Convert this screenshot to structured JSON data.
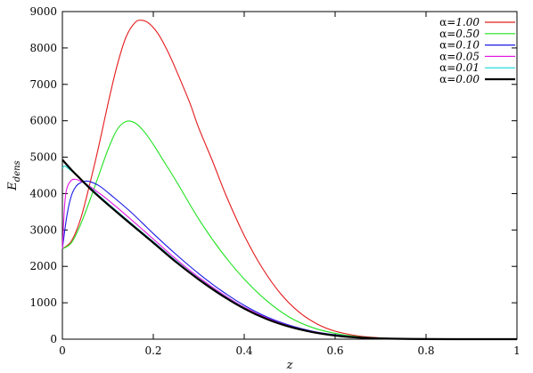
{
  "chart_data": {
    "type": "line",
    "xlabel": "z",
    "ylabel_main": "E",
    "ylabel_sub": "dens",
    "xlim": [
      0,
      1
    ],
    "ylim": [
      0,
      9000
    ],
    "x_ticks": [
      "0",
      "0.2",
      "0.4",
      "0.6",
      "0.8",
      "1"
    ],
    "y_ticks": [
      "0",
      "1000",
      "2000",
      "3000",
      "4000",
      "5000",
      "6000",
      "7000",
      "8000",
      "9000"
    ],
    "grid": false,
    "legend_position": "top-right",
    "series": [
      {
        "name": "α=1.00",
        "color": "#e41a1c",
        "points": [
          [
            0,
            2480
          ],
          [
            0.02,
            2700
          ],
          [
            0.04,
            3300
          ],
          [
            0.06,
            4250
          ],
          [
            0.08,
            5300
          ],
          [
            0.1,
            6450
          ],
          [
            0.12,
            7500
          ],
          [
            0.14,
            8300
          ],
          [
            0.16,
            8700
          ],
          [
            0.175,
            8760
          ],
          [
            0.19,
            8680
          ],
          [
            0.21,
            8400
          ],
          [
            0.23,
            7950
          ],
          [
            0.25,
            7400
          ],
          [
            0.28,
            6500
          ],
          [
            0.3,
            5800
          ],
          [
            0.33,
            4900
          ],
          [
            0.36,
            3950
          ],
          [
            0.4,
            2850
          ],
          [
            0.44,
            1950
          ],
          [
            0.48,
            1250
          ],
          [
            0.52,
            750
          ],
          [
            0.56,
            420
          ],
          [
            0.6,
            220
          ],
          [
            0.65,
            90
          ],
          [
            0.7,
            35
          ],
          [
            0.75,
            12
          ],
          [
            0.8,
            4
          ],
          [
            0.9,
            0
          ],
          [
            1.0,
            0
          ]
        ]
      },
      {
        "name": "α=0.50",
        "color": "#1fe21f",
        "points": [
          [
            0,
            2480
          ],
          [
            0.02,
            2650
          ],
          [
            0.04,
            3150
          ],
          [
            0.06,
            3800
          ],
          [
            0.08,
            4500
          ],
          [
            0.1,
            5200
          ],
          [
            0.12,
            5750
          ],
          [
            0.14,
            5980
          ],
          [
            0.16,
            5940
          ],
          [
            0.18,
            5700
          ],
          [
            0.2,
            5350
          ],
          [
            0.22,
            4950
          ],
          [
            0.25,
            4350
          ],
          [
            0.3,
            3300
          ],
          [
            0.35,
            2400
          ],
          [
            0.4,
            1650
          ],
          [
            0.45,
            1050
          ],
          [
            0.5,
            600
          ],
          [
            0.55,
            320
          ],
          [
            0.6,
            160
          ],
          [
            0.65,
            70
          ],
          [
            0.7,
            28
          ],
          [
            0.8,
            4
          ],
          [
            0.9,
            0
          ],
          [
            1.0,
            0
          ]
        ]
      },
      {
        "name": "α=0.10",
        "color": "#1a1ae6",
        "points": [
          [
            0,
            2480
          ],
          [
            0.01,
            3400
          ],
          [
            0.02,
            3950
          ],
          [
            0.03,
            4200
          ],
          [
            0.04,
            4300
          ],
          [
            0.05,
            4340
          ],
          [
            0.06,
            4330
          ],
          [
            0.08,
            4220
          ],
          [
            0.1,
            4030
          ],
          [
            0.15,
            3500
          ],
          [
            0.2,
            2900
          ],
          [
            0.25,
            2330
          ],
          [
            0.3,
            1800
          ],
          [
            0.35,
            1330
          ],
          [
            0.4,
            930
          ],
          [
            0.45,
            610
          ],
          [
            0.5,
            380
          ],
          [
            0.55,
            220
          ],
          [
            0.6,
            120
          ],
          [
            0.65,
            55
          ],
          [
            0.7,
            22
          ],
          [
            0.8,
            3
          ],
          [
            0.9,
            0
          ],
          [
            1.0,
            0
          ]
        ]
      },
      {
        "name": "α=0.05",
        "color": "#e31ae3",
        "points": [
          [
            0,
            2480
          ],
          [
            0.005,
            3700
          ],
          [
            0.01,
            4150
          ],
          [
            0.02,
            4370
          ],
          [
            0.03,
            4390
          ],
          [
            0.04,
            4340
          ],
          [
            0.06,
            4200
          ],
          [
            0.08,
            4020
          ],
          [
            0.1,
            3830
          ],
          [
            0.15,
            3300
          ],
          [
            0.2,
            2750
          ],
          [
            0.25,
            2200
          ],
          [
            0.3,
            1700
          ],
          [
            0.35,
            1260
          ],
          [
            0.4,
            880
          ],
          [
            0.45,
            580
          ],
          [
            0.5,
            360
          ],
          [
            0.55,
            210
          ],
          [
            0.6,
            110
          ],
          [
            0.65,
            50
          ],
          [
            0.7,
            20
          ],
          [
            0.8,
            3
          ],
          [
            0.9,
            0
          ],
          [
            1.0,
            0
          ]
        ]
      },
      {
        "name": "α=0.01",
        "color": "#14d9d9",
        "points": [
          [
            0,
            4700
          ],
          [
            0.005,
            4760
          ],
          [
            0.01,
            4720
          ],
          [
            0.02,
            4620
          ],
          [
            0.04,
            4400
          ],
          [
            0.06,
            4180
          ],
          [
            0.08,
            3950
          ],
          [
            0.1,
            3730
          ],
          [
            0.15,
            3200
          ],
          [
            0.2,
            2680
          ],
          [
            0.25,
            2150
          ],
          [
            0.3,
            1660
          ],
          [
            0.35,
            1230
          ],
          [
            0.4,
            860
          ],
          [
            0.45,
            560
          ],
          [
            0.5,
            350
          ],
          [
            0.55,
            200
          ],
          [
            0.6,
            105
          ],
          [
            0.65,
            48
          ],
          [
            0.7,
            19
          ],
          [
            0.8,
            3
          ],
          [
            0.9,
            0
          ],
          [
            1.0,
            0
          ]
        ]
      },
      {
        "name": "α=0.00",
        "color": "#000000",
        "points": [
          [
            0,
            4930
          ],
          [
            0.02,
            4650
          ],
          [
            0.04,
            4400
          ],
          [
            0.06,
            4150
          ],
          [
            0.08,
            3920
          ],
          [
            0.1,
            3700
          ],
          [
            0.15,
            3170
          ],
          [
            0.2,
            2650
          ],
          [
            0.25,
            2120
          ],
          [
            0.3,
            1640
          ],
          [
            0.35,
            1210
          ],
          [
            0.4,
            840
          ],
          [
            0.45,
            550
          ],
          [
            0.5,
            340
          ],
          [
            0.55,
            195
          ],
          [
            0.6,
            100
          ],
          [
            0.65,
            45
          ],
          [
            0.7,
            18
          ],
          [
            0.8,
            3
          ],
          [
            0.9,
            0
          ],
          [
            1.0,
            0
          ]
        ]
      }
    ]
  }
}
